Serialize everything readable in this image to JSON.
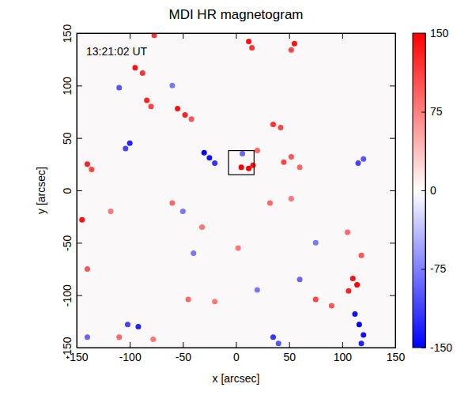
{
  "chart_data": {
    "type": "scatter",
    "title": "MDI HR magnetogram",
    "annotation": "13:21:02 UT",
    "xlabel": "x [arcsec]",
    "ylabel": "y [arcsec]",
    "xlim": [
      -150,
      150
    ],
    "ylim": [
      -150,
      150
    ],
    "xticks": [
      -150,
      -100,
      -50,
      0,
      50,
      100,
      150
    ],
    "yticks": [
      -150,
      -100,
      -50,
      0,
      50,
      100,
      150
    ],
    "x": [
      -77,
      12,
      15,
      55,
      52,
      -95,
      -88,
      -84,
      -80,
      -55,
      -48,
      -42,
      35,
      42,
      -140,
      -136,
      5,
      12,
      16,
      20,
      45,
      52,
      60,
      -145,
      -118,
      -60,
      -32,
      32,
      52,
      105,
      118,
      110,
      114,
      106,
      75,
      90,
      -45,
      -20,
      -140,
      -110,
      -78,
      2,
      -100,
      -104,
      -30,
      -25,
      -20,
      6,
      -110,
      -60,
      -92,
      -102,
      -140,
      35,
      40,
      112,
      116,
      120,
      118,
      -50,
      -40,
      60,
      115,
      120,
      75,
      20
    ],
    "y": [
      148,
      142,
      136,
      140,
      134,
      117,
      112,
      86,
      80,
      78,
      72,
      68,
      63,
      60,
      25,
      20,
      22,
      21,
      24,
      38,
      27,
      32,
      22,
      -28,
      -20,
      -12,
      -35,
      -12,
      -8,
      -40,
      -62,
      -84,
      -90,
      -96,
      -104,
      -110,
      -104,
      -106,
      -75,
      -140,
      -142,
      -55,
      45,
      40,
      36,
      31,
      26,
      35,
      98,
      100,
      -130,
      -128,
      -140,
      -140,
      -146,
      -118,
      -128,
      -138,
      -146,
      -20,
      -60,
      -85,
      26,
      30,
      -50,
      -95
    ],
    "values": [
      120,
      140,
      120,
      140,
      110,
      140,
      120,
      130,
      110,
      140,
      130,
      100,
      120,
      110,
      130,
      110,
      150,
      150,
      140,
      90,
      110,
      100,
      90,
      140,
      80,
      90,
      80,
      90,
      80,
      90,
      100,
      140,
      150,
      130,
      110,
      100,
      90,
      80,
      100,
      90,
      80,
      80,
      -130,
      -110,
      -150,
      -140,
      -120,
      -90,
      -100,
      -80,
      -130,
      -110,
      -90,
      -120,
      -100,
      -140,
      -150,
      -140,
      -130,
      -80,
      -80,
      -90,
      -110,
      -100,
      -80,
      -80
    ],
    "box": {
      "x": [
        -7,
        17
      ],
      "y": [
        15,
        38
      ]
    },
    "colorbar_range": [
      -150,
      150
    ],
    "colorbar_ticks": [
      -150,
      -75,
      0,
      75,
      150
    ]
  }
}
